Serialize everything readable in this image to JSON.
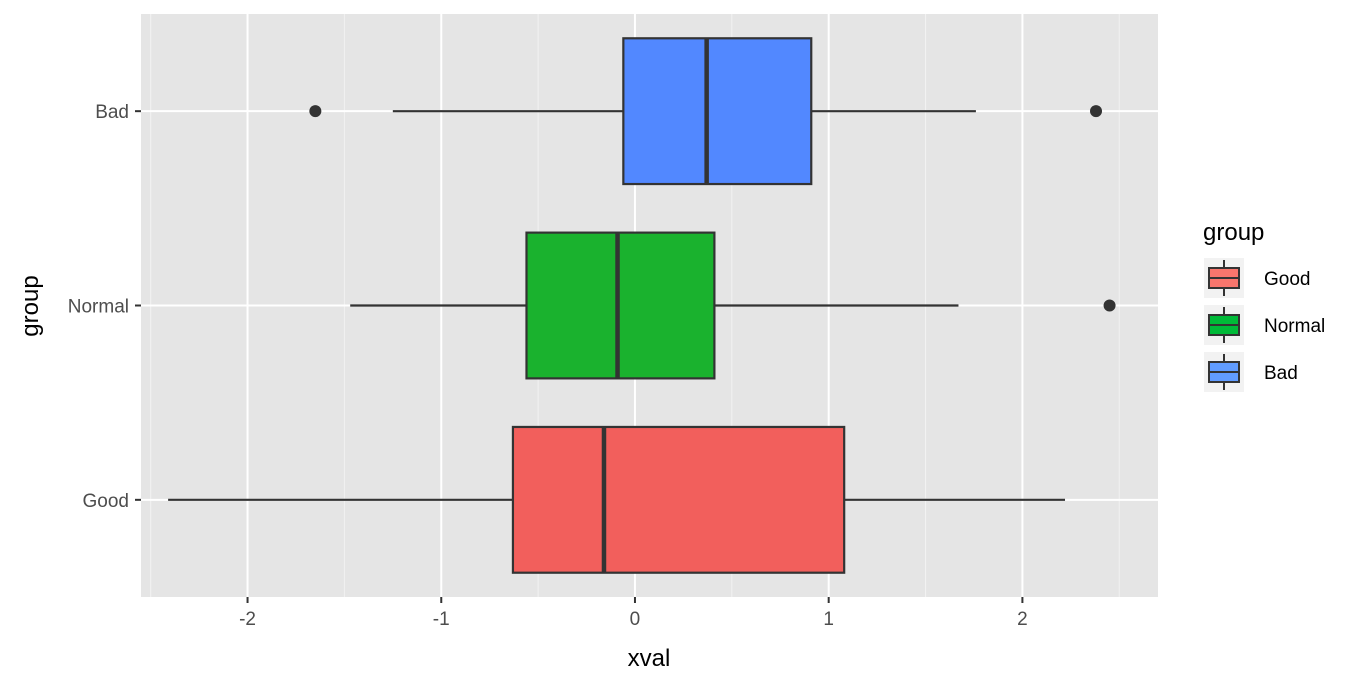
{
  "chart_data": {
    "type": "boxplot",
    "orientation": "horizontal",
    "xlabel": "xval",
    "ylabel": "group",
    "xlim": [
      -2.55,
      2.7
    ],
    "x_ticks": [
      -2,
      -1,
      0,
      1,
      2
    ],
    "x_tick_labels": [
      "-2",
      "-1",
      "0",
      "1",
      "2"
    ],
    "categories": [
      "Good",
      "Normal",
      "Bad"
    ],
    "grid": true,
    "background": "#e5e5e5",
    "legend": {
      "title": "group",
      "position": "right",
      "entries": [
        {
          "label": "Good",
          "color": "#f8766d"
        },
        {
          "label": "Normal",
          "color": "#00ba38"
        },
        {
          "label": "Bad",
          "color": "#619cff"
        }
      ]
    },
    "boxes": [
      {
        "group": "Good",
        "color": "#f25f5c",
        "whisker_low": -2.41,
        "q1": -0.63,
        "median": -0.16,
        "q3": 1.08,
        "whisker_high": 2.22,
        "outliers": []
      },
      {
        "group": "Normal",
        "color": "#1ab22e",
        "whisker_low": -1.47,
        "q1": -0.56,
        "median": -0.09,
        "q3": 0.41,
        "whisker_high": 1.67,
        "outliers": [
          2.45
        ]
      },
      {
        "group": "Bad",
        "color": "#5288ff",
        "whisker_low": -1.25,
        "q1": -0.06,
        "median": 0.37,
        "q3": 0.91,
        "whisker_high": 1.76,
        "outliers": [
          -1.65,
          2.38
        ]
      }
    ]
  }
}
